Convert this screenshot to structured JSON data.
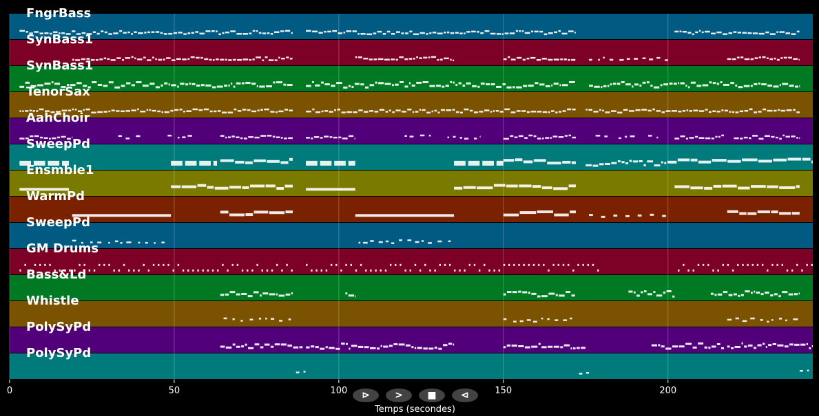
{
  "chart_data": {
    "type": "piano-roll",
    "xlabel": "Temps (secondes)",
    "xlim": [
      0,
      244
    ],
    "xticks": [
      0,
      50,
      100,
      150,
      200
    ],
    "grid": true,
    "tracks": [
      {
        "name": "FngrBass",
        "color": "#005a82",
        "phrases": [
          [
            3,
            86,
            "ticks"
          ],
          [
            90,
            172,
            "ticks"
          ],
          [
            202,
            240,
            "ticks"
          ]
        ]
      },
      {
        "name": "SynBass1",
        "color": "#7d0026",
        "phrases": [
          [
            19,
            86,
            "ticks"
          ],
          [
            105,
            135,
            "ticks"
          ],
          [
            150,
            172,
            "ticks"
          ],
          [
            176,
            200,
            "sparse"
          ],
          [
            218,
            240,
            "ticks"
          ]
        ]
      },
      {
        "name": "SynBass1",
        "color": "#007a22",
        "phrases": [
          [
            3,
            86,
            "dense"
          ],
          [
            90,
            172,
            "dense"
          ],
          [
            176,
            240,
            "dense"
          ]
        ]
      },
      {
        "name": "TenorSax",
        "color": "#7a5200",
        "phrases": [
          [
            3,
            86,
            "ticks"
          ],
          [
            90,
            172,
            "ticks"
          ],
          [
            175,
            240,
            "ticks"
          ]
        ]
      },
      {
        "name": "AahChoir",
        "color": "#52007a",
        "phrases": [
          [
            3,
            19,
            "ticks"
          ],
          [
            33,
            41,
            "sparse"
          ],
          [
            48,
            56,
            "sparse"
          ],
          [
            64,
            86,
            "ticks"
          ],
          [
            90,
            105,
            "ticks"
          ],
          [
            120,
            128,
            "sparse"
          ],
          [
            133,
            143,
            "sparse"
          ],
          [
            150,
            172,
            "ticks"
          ],
          [
            178,
            182,
            "sparse"
          ],
          [
            185,
            190,
            "sparse"
          ],
          [
            194,
            197,
            "sparse"
          ],
          [
            202,
            217,
            "ticks"
          ],
          [
            220,
            240,
            "ticks"
          ]
        ]
      },
      {
        "name": "SweepPd",
        "color": "#007a7a",
        "phrases": [
          [
            3,
            18,
            "blocks"
          ],
          [
            49,
            63,
            "blocks"
          ],
          [
            64,
            86,
            "bars"
          ],
          [
            90,
            105,
            "blocks"
          ],
          [
            135,
            150,
            "blocks"
          ],
          [
            150,
            172,
            "bars"
          ],
          [
            175,
            200,
            "dense"
          ],
          [
            200,
            244,
            "bars"
          ]
        ]
      },
      {
        "name": "Ensmble1",
        "color": "#7a7a00",
        "phrases": [
          [
            3,
            18,
            "long"
          ],
          [
            49,
            86,
            "bars"
          ],
          [
            90,
            105,
            "long"
          ],
          [
            135,
            172,
            "bars"
          ],
          [
            202,
            240,
            "bars"
          ]
        ]
      },
      {
        "name": "WarmPd",
        "color": "#7a2200",
        "phrases": [
          [
            19,
            49,
            "long"
          ],
          [
            64,
            86,
            "bars"
          ],
          [
            105,
            135,
            "long"
          ],
          [
            150,
            172,
            "bars"
          ],
          [
            176,
            200,
            "dashes"
          ],
          [
            218,
            240,
            "bars"
          ]
        ]
      },
      {
        "name": "SweepPd",
        "color": "#005a82",
        "phrases": [
          [
            19,
            49,
            "sparse"
          ],
          [
            106,
            134,
            "sparse"
          ]
        ]
      },
      {
        "name": "GM Drums",
        "color": "#7d0026",
        "phrases": [
          [
            3,
            86,
            "drums"
          ],
          [
            90,
            180,
            "drums"
          ],
          [
            203,
            244,
            "drums"
          ]
        ]
      },
      {
        "name": "Bass&Ld",
        "color": "#007a22",
        "phrases": [
          [
            64,
            86,
            "dense"
          ],
          [
            102,
            105,
            "dense"
          ],
          [
            150,
            172,
            "dense"
          ],
          [
            188,
            202,
            "dense"
          ],
          [
            213,
            240,
            "dense"
          ]
        ]
      },
      {
        "name": "Whistle",
        "color": "#7a5200",
        "phrases": [
          [
            65,
            86,
            "sparse"
          ],
          [
            150,
            172,
            "sparse"
          ],
          [
            218,
            240,
            "sparse"
          ]
        ]
      },
      {
        "name": "PolySyPd",
        "color": "#52007a",
        "phrases": [
          [
            64,
            89,
            "dense"
          ],
          [
            90,
            135,
            "dense"
          ],
          [
            150,
            175,
            "dense"
          ],
          [
            195,
            217,
            "dense"
          ],
          [
            218,
            244,
            "dense"
          ]
        ]
      },
      {
        "name": "PolySyPd",
        "color": "#007a7a",
        "phrases": [
          [
            87,
            90,
            "sparse"
          ],
          [
            173,
            176,
            "sparse"
          ],
          [
            240,
            244,
            "sparse"
          ]
        ]
      }
    ]
  },
  "controls": {
    "play_label": "⊳",
    "forward_label": ">",
    "stop_label": "■",
    "back_label": "⊲"
  }
}
